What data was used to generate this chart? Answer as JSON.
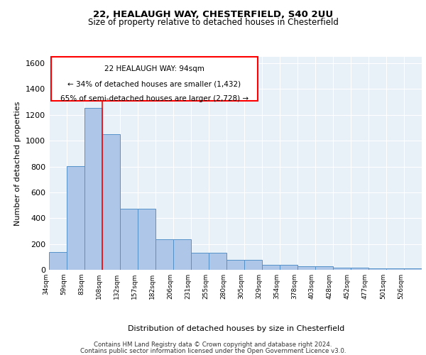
{
  "title1": "22, HEALAUGH WAY, CHESTERFIELD, S40 2UU",
  "title2": "Size of property relative to detached houses in Chesterfield",
  "xlabel": "Distribution of detached houses by size in Chesterfield",
  "ylabel": "Number of detached properties",
  "footer1": "Contains HM Land Registry data © Crown copyright and database right 2024.",
  "footer2": "Contains public sector information licensed under the Open Government Licence v3.0.",
  "annotation_line1": "22 HEALAUGH WAY: 94sqm",
  "annotation_line2": "← 34% of detached houses are smaller (1,432)",
  "annotation_line3": "65% of semi-detached houses are larger (2,728) →",
  "bar_values": [
    135,
    805,
    1255,
    1050,
    475,
    475,
    235,
    235,
    130,
    130,
    75,
    75,
    40,
    40,
    25,
    25,
    15,
    15,
    10,
    10,
    10
  ],
  "categories": [
    "34sqm",
    "59sqm",
    "83sqm",
    "108sqm",
    "132sqm",
    "157sqm",
    "182sqm",
    "206sqm",
    "231sqm",
    "255sqm",
    "280sqm",
    "305sqm",
    "329sqm",
    "354sqm",
    "378sqm",
    "403sqm",
    "428sqm",
    "452sqm",
    "477sqm",
    "501sqm",
    "526sqm"
  ],
  "bar_color": "#aec6e8",
  "bar_edge_color": "#5591c8",
  "background_color": "#e8f0f8",
  "grid_color": "#ffffff",
  "red_line_x": 3.0,
  "ylim": [
    0,
    1650
  ],
  "yticks": [
    0,
    200,
    400,
    600,
    800,
    1000,
    1200,
    1400,
    1600
  ]
}
